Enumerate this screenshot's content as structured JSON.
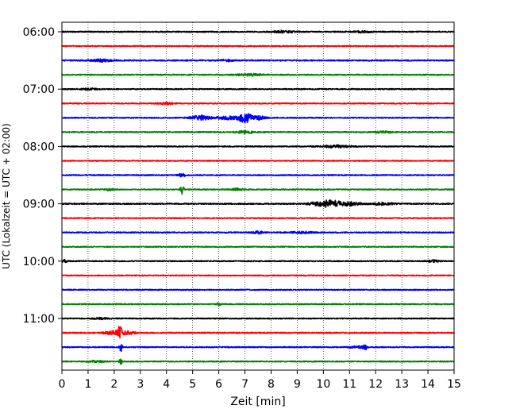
{
  "chart_data": {
    "type": "line",
    "title": "",
    "xlabel": "Zeit  [min]",
    "ylabel": "UTC (Lokalzeit = UTC + 02:00)",
    "xlim": [
      0,
      15
    ],
    "x_ticks": [
      "0",
      "1",
      "2",
      "3",
      "4",
      "5",
      "6",
      "7",
      "8",
      "9",
      "10",
      "11",
      "12",
      "13",
      "14",
      "15"
    ],
    "y_tick_labels": [
      "06:00",
      "07:00",
      "08:00",
      "09:00",
      "10:00",
      "11:00"
    ],
    "trace_interval_minutes": 15,
    "start_time": "06:00",
    "grid": "vertical dotted",
    "color_cycle": [
      "#000000",
      "#ff0000",
      "#0000ff",
      "#008000"
    ],
    "series": [
      {
        "time": "06:00",
        "color": "#000000",
        "base_amp": 0.28,
        "events": [
          {
            "x": 8.5,
            "amp": 0.5,
            "w": 0.4
          },
          {
            "x": 11.5,
            "amp": 0.4,
            "w": 0.3
          }
        ]
      },
      {
        "time": "06:15",
        "color": "#ff0000",
        "base_amp": 0.26,
        "events": []
      },
      {
        "time": "06:30",
        "color": "#0000ff",
        "base_amp": 0.3,
        "events": [
          {
            "x": 1.5,
            "amp": 0.6,
            "w": 0.4
          },
          {
            "x": 6.3,
            "amp": 0.4,
            "w": 0.3
          }
        ]
      },
      {
        "time": "06:45",
        "color": "#008000",
        "base_amp": 0.28,
        "events": [
          {
            "x": 7.2,
            "amp": 0.5,
            "w": 0.5
          }
        ]
      },
      {
        "time": "07:00",
        "color": "#000000",
        "base_amp": 0.26,
        "events": [
          {
            "x": 1.0,
            "amp": 0.4,
            "w": 0.3
          }
        ]
      },
      {
        "time": "07:15",
        "color": "#ff0000",
        "base_amp": 0.26,
        "events": [
          {
            "x": 4.0,
            "amp": 0.5,
            "w": 0.3
          }
        ]
      },
      {
        "time": "07:30",
        "color": "#0000ff",
        "base_amp": 0.26,
        "events": [
          {
            "x": 5.3,
            "amp": 1.1,
            "w": 0.4
          },
          {
            "x": 6.3,
            "amp": 0.8,
            "w": 0.4
          },
          {
            "x": 7.0,
            "amp": 2.5,
            "w": 0.25
          },
          {
            "x": 7.5,
            "amp": 1.0,
            "w": 0.3
          }
        ]
      },
      {
        "time": "07:45",
        "color": "#008000",
        "base_amp": 0.26,
        "events": [
          {
            "x": 7.0,
            "amp": 0.6,
            "w": 0.3
          },
          {
            "x": 12.3,
            "amp": 0.4,
            "w": 0.3
          }
        ]
      },
      {
        "time": "08:00",
        "color": "#000000",
        "base_amp": 0.27,
        "events": [
          {
            "x": 10.5,
            "amp": 0.6,
            "w": 0.5
          }
        ]
      },
      {
        "time": "08:15",
        "color": "#ff0000",
        "base_amp": 0.26,
        "events": []
      },
      {
        "time": "08:30",
        "color": "#0000ff",
        "base_amp": 0.26,
        "events": [
          {
            "x": 4.6,
            "amp": 0.8,
            "w": 0.15
          }
        ]
      },
      {
        "time": "08:45",
        "color": "#008000",
        "base_amp": 0.26,
        "events": [
          {
            "x": 1.8,
            "amp": 0.5,
            "w": 0.2
          },
          {
            "x": 4.6,
            "amp": 3.2,
            "w": 0.06
          },
          {
            "x": 6.7,
            "amp": 0.5,
            "w": 0.2
          }
        ]
      },
      {
        "time": "09:00",
        "color": "#000000",
        "base_amp": 0.3,
        "events": [
          {
            "x": 9.8,
            "amp": 0.8,
            "w": 0.4
          },
          {
            "x": 10.3,
            "amp": 1.6,
            "w": 0.35
          },
          {
            "x": 11.0,
            "amp": 0.9,
            "w": 0.4
          },
          {
            "x": 12.3,
            "amp": 0.6,
            "w": 0.4
          }
        ]
      },
      {
        "time": "09:15",
        "color": "#ff0000",
        "base_amp": 0.26,
        "events": []
      },
      {
        "time": "09:30",
        "color": "#0000ff",
        "base_amp": 0.28,
        "events": [
          {
            "x": 7.5,
            "amp": 0.6,
            "w": 0.2
          },
          {
            "x": 9.2,
            "amp": 0.4,
            "w": 0.5
          }
        ]
      },
      {
        "time": "09:45",
        "color": "#008000",
        "base_amp": 0.25,
        "events": []
      },
      {
        "time": "10:00",
        "color": "#000000",
        "base_amp": 0.27,
        "events": [
          {
            "x": 0.1,
            "amp": 0.7,
            "w": 0.1
          },
          {
            "x": 14.2,
            "amp": 0.5,
            "w": 0.2
          }
        ]
      },
      {
        "time": "10:15",
        "color": "#ff0000",
        "base_amp": 0.25,
        "events": []
      },
      {
        "time": "10:30",
        "color": "#0000ff",
        "base_amp": 0.25,
        "events": []
      },
      {
        "time": "10:45",
        "color": "#008000",
        "base_amp": 0.26,
        "events": [
          {
            "x": 6.0,
            "amp": 0.7,
            "w": 0.08
          }
        ]
      },
      {
        "time": "11:00",
        "color": "#000000",
        "base_amp": 0.26,
        "events": [
          {
            "x": 1.5,
            "amp": 0.4,
            "w": 0.3
          }
        ]
      },
      {
        "time": "11:15",
        "color": "#ff0000",
        "base_amp": 0.28,
        "events": [
          {
            "x": 1.9,
            "amp": 0.8,
            "w": 0.3
          },
          {
            "x": 2.2,
            "amp": 2.8,
            "w": 0.1
          },
          {
            "x": 2.5,
            "amp": 0.8,
            "w": 0.3
          }
        ]
      },
      {
        "time": "11:30",
        "color": "#0000ff",
        "base_amp": 0.26,
        "events": [
          {
            "x": 2.25,
            "amp": 2.6,
            "w": 0.05
          },
          {
            "x": 11.3,
            "amp": 0.6,
            "w": 0.3
          },
          {
            "x": 11.6,
            "amp": 1.4,
            "w": 0.06
          }
        ]
      },
      {
        "time": "11:45",
        "color": "#008000",
        "base_amp": 0.26,
        "events": [
          {
            "x": 1.3,
            "amp": 0.4,
            "w": 0.3
          },
          {
            "x": 2.25,
            "amp": 2.5,
            "w": 0.05
          }
        ]
      }
    ]
  }
}
